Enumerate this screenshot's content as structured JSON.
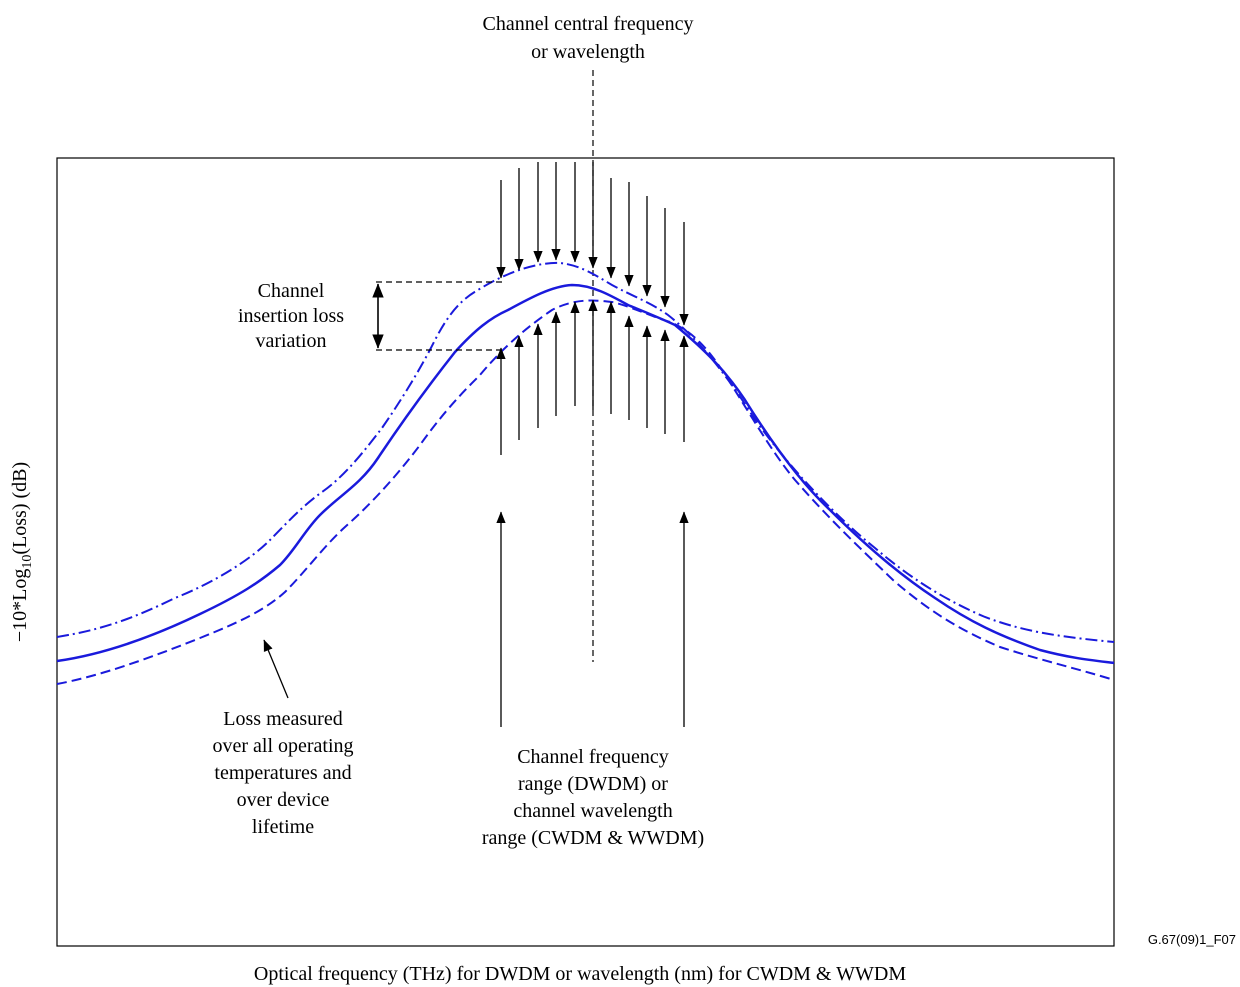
{
  "title": {
    "lines": [
      "Channel central frequency",
      "or wavelength"
    ]
  },
  "labels": {
    "insertion_loss": [
      "Channel",
      "insertion loss",
      "variation"
    ],
    "loss_measured": [
      "Loss measured",
      "over all operating",
      "temperatures and",
      "over device",
      "lifetime"
    ],
    "channel_range": [
      "Channel frequency",
      "range (DWDM) or",
      "channel wavelength",
      "range (CWDM & WWDM)"
    ]
  },
  "axes": {
    "y_label_prefix": "−10*Log",
    "y_label_sub": "10",
    "y_label_suffix": "(Loss) (dB)",
    "x_label": "Optical frequency (THz) for DWDM or wavelength (nm) for CWDM & WWDM"
  },
  "figure_ref": "G.67(09)1_F07",
  "colors": {
    "curve": "#1a1adc",
    "annotation": "#000000"
  },
  "curves": [
    {
      "name": "max",
      "style": "dash-dot"
    },
    {
      "name": "typical",
      "style": "solid"
    },
    {
      "name": "min",
      "style": "dashed"
    }
  ]
}
